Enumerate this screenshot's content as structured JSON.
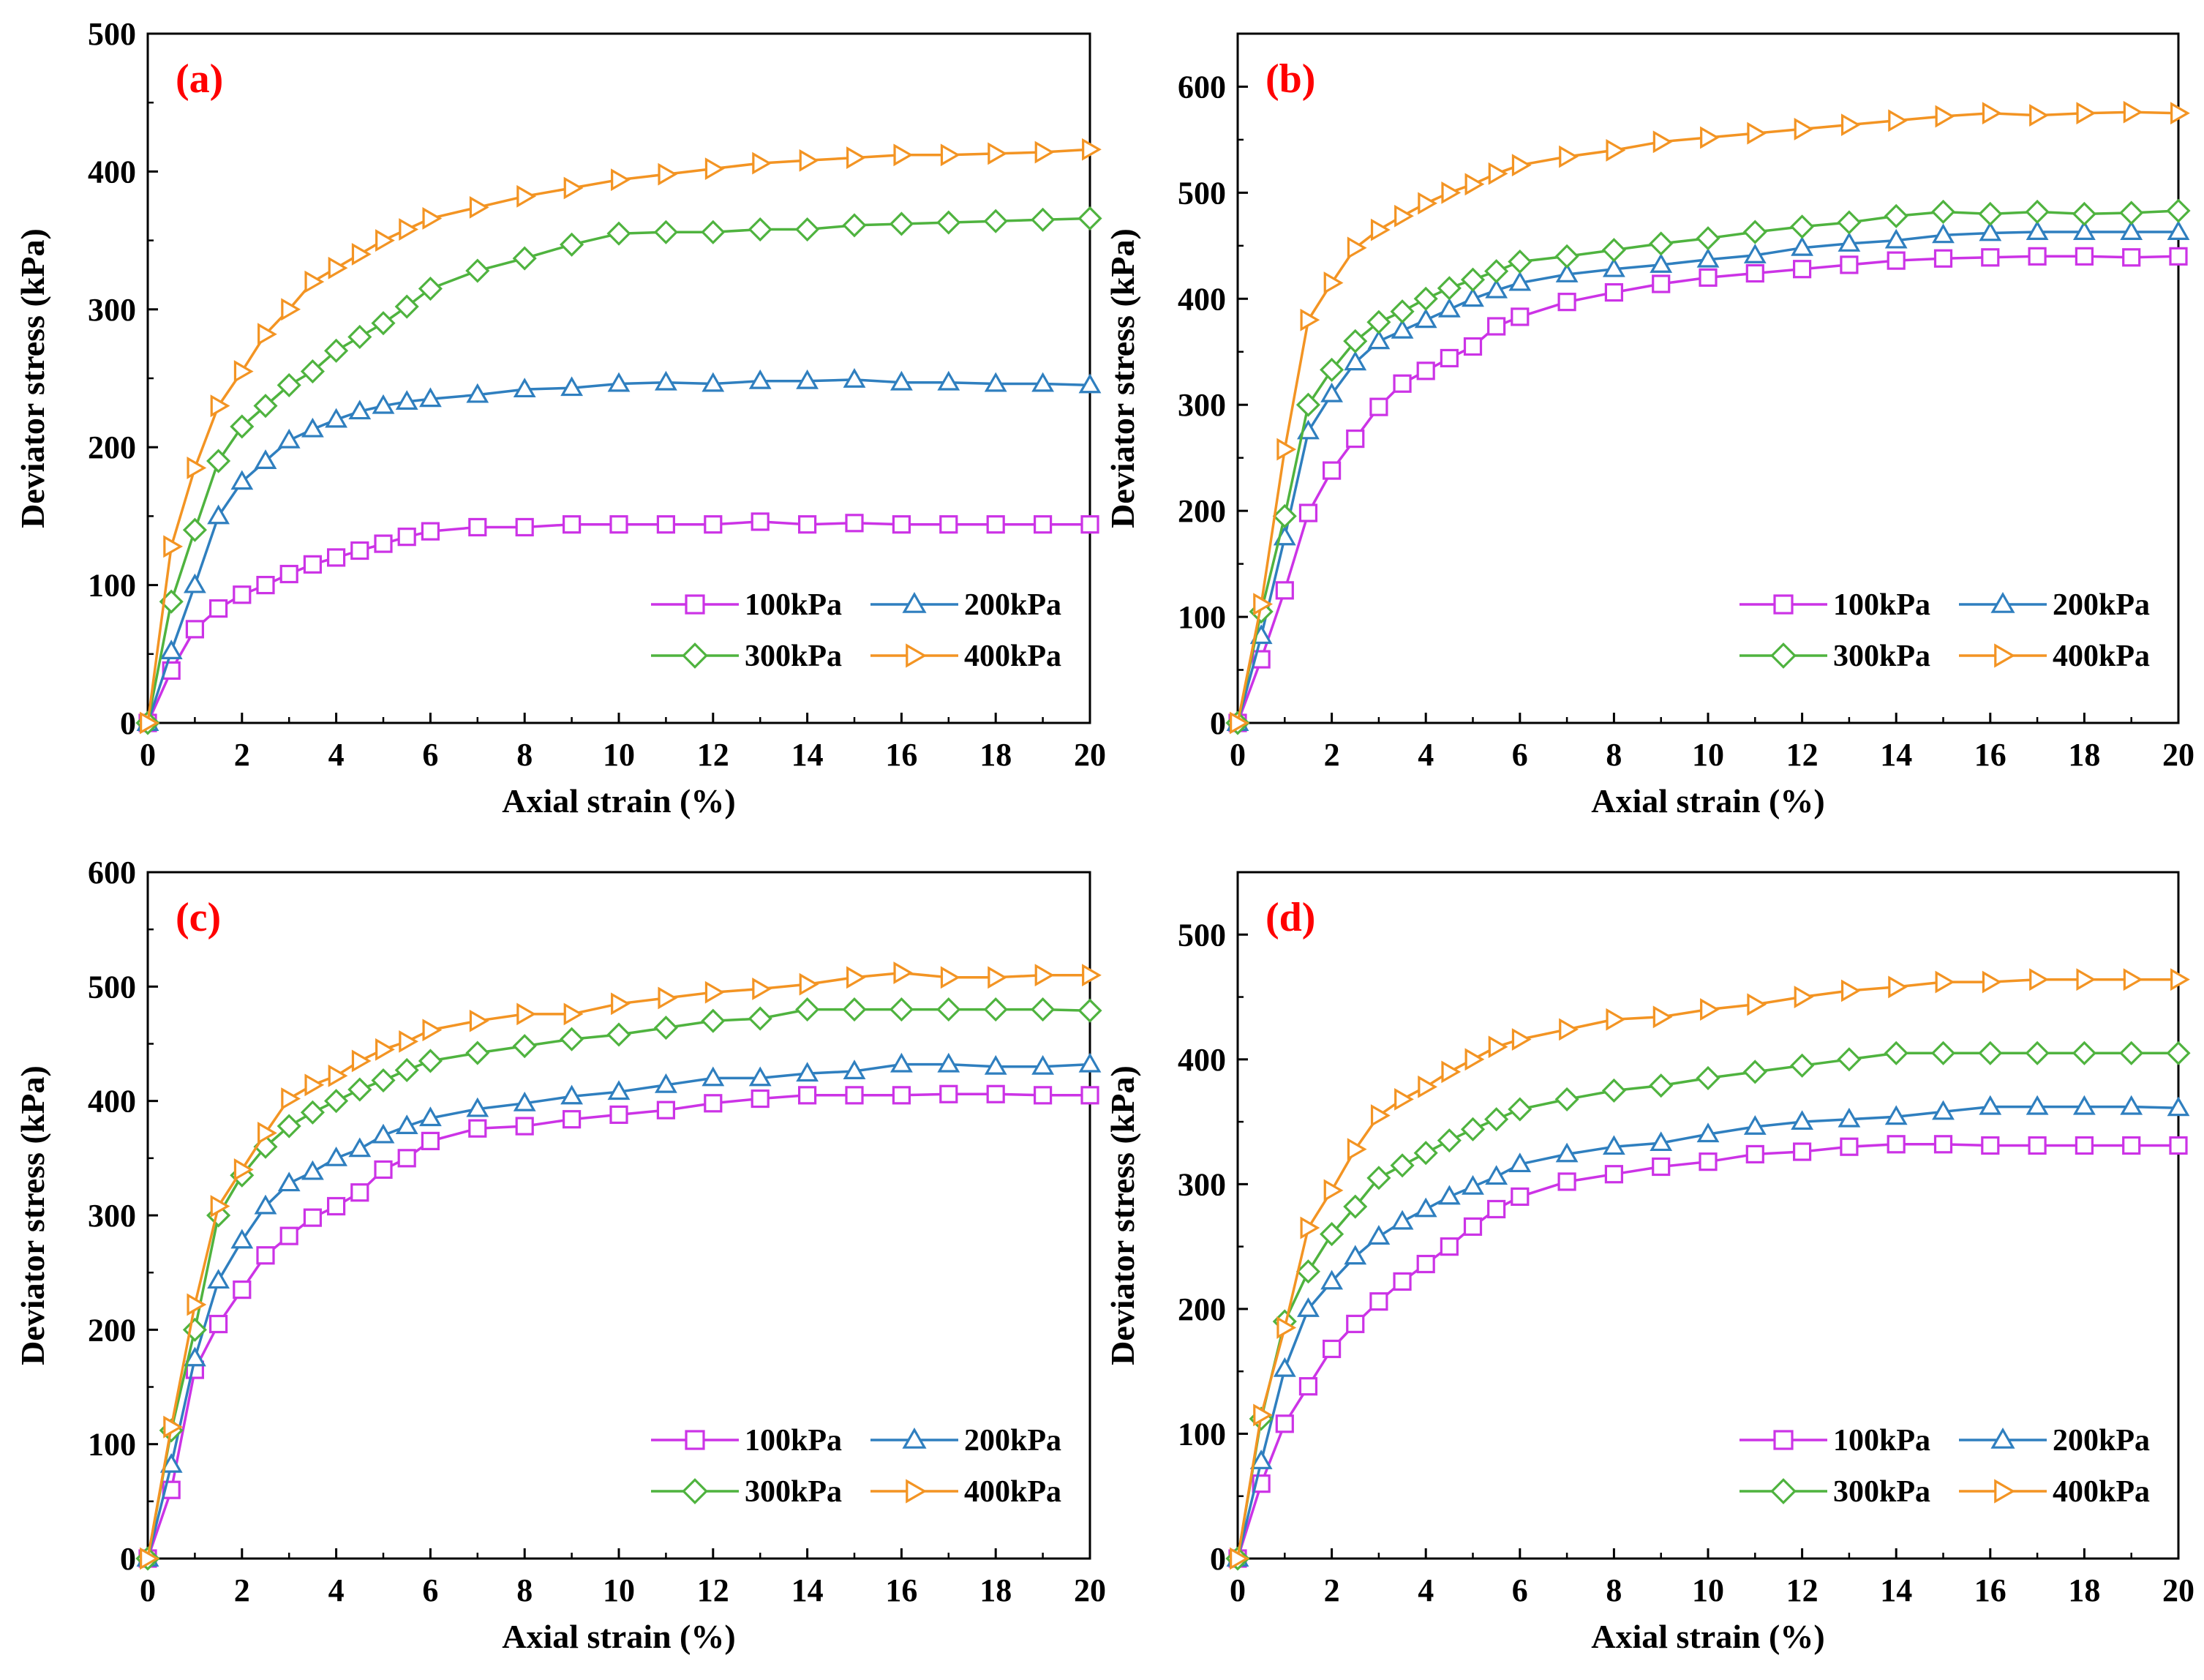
{
  "colors": {
    "100kPa": "#cc33e6",
    "200kPa": "#2f7fbf",
    "300kPa": "#4fb33f",
    "400kPa": "#f39423",
    "panel_tag": "#ff0000",
    "axis": "#000000"
  },
  "markers": {
    "100kPa": "square",
    "200kPa": "triangle-up",
    "300kPa": "diamond",
    "400kPa": "triangle-right"
  },
  "chart_data": [
    {
      "id": "a",
      "type": "line",
      "tag": "(a)",
      "xlabel": "Axial strain (%)",
      "ylabel": "Deviator stress (kPa)",
      "xlim": [
        0,
        20
      ],
      "ylim": [
        0,
        500
      ],
      "xticks": [
        0,
        2,
        4,
        6,
        8,
        10,
        12,
        14,
        16,
        18,
        20
      ],
      "yticks": [
        0,
        100,
        200,
        300,
        400,
        500
      ],
      "legend_position": "bottom-right",
      "series": [
        {
          "name": "100kPa",
          "x": [
            0,
            0.5,
            1,
            1.5,
            2,
            2.5,
            3,
            3.5,
            4,
            4.5,
            5,
            5.5,
            6,
            7,
            8,
            9,
            10,
            11,
            12,
            13,
            14,
            15,
            16,
            17,
            18,
            19,
            20
          ],
          "y": [
            0,
            38,
            68,
            83,
            93,
            100,
            108,
            115,
            120,
            125,
            130,
            135,
            139,
            142,
            142,
            144,
            144,
            144,
            144,
            146,
            144,
            145,
            144,
            144,
            144,
            144,
            144
          ]
        },
        {
          "name": "200kPa",
          "x": [
            0,
            0.5,
            1,
            1.5,
            2,
            2.5,
            3,
            3.5,
            4,
            4.5,
            5,
            5.5,
            6,
            7,
            8,
            9,
            10,
            11,
            12,
            13,
            14,
            15,
            16,
            17,
            18,
            19,
            20
          ],
          "y": [
            0,
            52,
            100,
            150,
            175,
            190,
            205,
            213,
            220,
            226,
            230,
            233,
            235,
            238,
            242,
            243,
            246,
            247,
            246,
            248,
            248,
            249,
            247,
            247,
            246,
            246,
            245
          ]
        },
        {
          "name": "300kPa",
          "x": [
            0,
            0.5,
            1,
            1.5,
            2,
            2.5,
            3,
            3.5,
            4,
            4.5,
            5,
            5.5,
            6,
            7,
            8,
            9,
            10,
            11,
            12,
            13,
            14,
            15,
            16,
            17,
            18,
            19,
            20
          ],
          "y": [
            0,
            88,
            140,
            190,
            215,
            230,
            245,
            255,
            270,
            280,
            290,
            302,
            315,
            328,
            337,
            347,
            355,
            356,
            356,
            358,
            358,
            361,
            362,
            363,
            364,
            365,
            366
          ]
        },
        {
          "name": "400kPa",
          "x": [
            0,
            0.5,
            1,
            1.5,
            2,
            2.5,
            3,
            3.5,
            4,
            4.5,
            5,
            5.5,
            6,
            7,
            8,
            9,
            10,
            11,
            12,
            13,
            14,
            15,
            16,
            17,
            18,
            19,
            20
          ],
          "y": [
            0,
            128,
            185,
            230,
            255,
            282,
            300,
            320,
            330,
            340,
            350,
            358,
            366,
            374,
            382,
            388,
            394,
            398,
            402,
            406,
            408,
            410,
            412,
            412,
            413,
            414,
            416
          ]
        }
      ]
    },
    {
      "id": "b",
      "type": "line",
      "tag": "(b)",
      "xlabel": "Axial strain (%)",
      "ylabel": "Deviator stress (kPa)",
      "xlim": [
        0,
        20
      ],
      "ylim": [
        0,
        650
      ],
      "xticks": [
        0,
        2,
        4,
        6,
        8,
        10,
        12,
        14,
        16,
        18,
        20
      ],
      "yticks": [
        0,
        100,
        200,
        300,
        400,
        500,
        600
      ],
      "legend_position": "bottom-right",
      "series": [
        {
          "name": "100kPa",
          "x": [
            0,
            0.5,
            1,
            1.5,
            2,
            2.5,
            3,
            3.5,
            4,
            4.5,
            5,
            5.5,
            6,
            7,
            8,
            9,
            10,
            11,
            12,
            13,
            14,
            15,
            16,
            17,
            18,
            19,
            20
          ],
          "y": [
            0,
            60,
            125,
            198,
            238,
            268,
            298,
            320,
            332,
            344,
            355,
            374,
            383,
            397,
            406,
            414,
            420,
            424,
            428,
            432,
            436,
            438,
            439,
            440,
            440,
            439,
            440
          ]
        },
        {
          "name": "200kPa",
          "x": [
            0,
            0.5,
            1,
            1.5,
            2,
            2.5,
            3,
            3.5,
            4,
            4.5,
            5,
            5.5,
            6,
            7,
            8,
            9,
            10,
            11,
            12,
            13,
            14,
            15,
            16,
            17,
            18,
            19,
            20
          ],
          "y": [
            0,
            82,
            175,
            275,
            310,
            340,
            360,
            370,
            380,
            390,
            400,
            408,
            415,
            423,
            428,
            432,
            437,
            441,
            448,
            452,
            455,
            460,
            462,
            463,
            463,
            463,
            463
          ]
        },
        {
          "name": "300kPa",
          "x": [
            0,
            0.5,
            1,
            1.5,
            2,
            2.5,
            3,
            3.5,
            4,
            4.5,
            5,
            5.5,
            6,
            7,
            8,
            9,
            10,
            11,
            12,
            13,
            14,
            15,
            16,
            17,
            18,
            19,
            20
          ],
          "y": [
            0,
            105,
            195,
            300,
            333,
            360,
            378,
            388,
            400,
            410,
            418,
            426,
            435,
            440,
            446,
            452,
            457,
            463,
            468,
            472,
            478,
            482,
            480,
            482,
            480,
            481,
            483
          ]
        },
        {
          "name": "400kPa",
          "x": [
            0,
            0.5,
            1,
            1.5,
            2,
            2.5,
            3,
            3.5,
            4,
            4.5,
            5,
            5.5,
            6,
            7,
            8,
            9,
            10,
            11,
            12,
            13,
            14,
            15,
            16,
            17,
            18,
            19,
            20
          ],
          "y": [
            0,
            112,
            258,
            380,
            415,
            448,
            465,
            478,
            490,
            500,
            508,
            518,
            526,
            534,
            540,
            548,
            552,
            556,
            560,
            564,
            568,
            572,
            575,
            573,
            575,
            576,
            575
          ]
        }
      ]
    },
    {
      "id": "c",
      "type": "line",
      "tag": "(c)",
      "xlabel": "Axial strain (%)",
      "ylabel": "Deviator stress (kPa)",
      "xlim": [
        0,
        20
      ],
      "ylim": [
        0,
        600
      ],
      "xticks": [
        0,
        2,
        4,
        6,
        8,
        10,
        12,
        14,
        16,
        18,
        20
      ],
      "yticks": [
        0,
        100,
        200,
        300,
        400,
        500,
        600
      ],
      "legend_position": "bottom-right",
      "series": [
        {
          "name": "100kPa",
          "x": [
            0,
            0.5,
            1,
            1.5,
            2,
            2.5,
            3,
            3.5,
            4,
            4.5,
            5,
            5.5,
            6,
            7,
            8,
            9,
            10,
            11,
            12,
            13,
            14,
            15,
            16,
            17,
            18,
            19,
            20
          ],
          "y": [
            0,
            60,
            165,
            205,
            235,
            265,
            282,
            298,
            308,
            320,
            340,
            350,
            365,
            376,
            378,
            384,
            388,
            392,
            398,
            402,
            405,
            405,
            405,
            406,
            406,
            405,
            405
          ]
        },
        {
          "name": "200kPa",
          "x": [
            0,
            0.5,
            1,
            1.5,
            2,
            2.5,
            3,
            3.5,
            4,
            4.5,
            5,
            5.5,
            6,
            7,
            8,
            9,
            10,
            11,
            12,
            13,
            14,
            15,
            16,
            17,
            18,
            19,
            20
          ],
          "y": [
            0,
            82,
            175,
            243,
            278,
            308,
            328,
            338,
            350,
            358,
            370,
            378,
            385,
            393,
            398,
            404,
            408,
            414,
            420,
            420,
            424,
            426,
            432,
            432,
            430,
            430,
            432
          ]
        },
        {
          "name": "300kPa",
          "x": [
            0,
            0.5,
            1,
            1.5,
            2,
            2.5,
            3,
            3.5,
            4,
            4.5,
            5,
            5.5,
            6,
            7,
            8,
            9,
            10,
            11,
            12,
            13,
            14,
            15,
            16,
            17,
            18,
            19,
            20
          ],
          "y": [
            0,
            112,
            200,
            300,
            335,
            360,
            378,
            390,
            400,
            410,
            418,
            427,
            435,
            442,
            448,
            454,
            458,
            464,
            470,
            472,
            480,
            480,
            480,
            480,
            480,
            480,
            479
          ]
        },
        {
          "name": "400kPa",
          "x": [
            0,
            0.5,
            1,
            1.5,
            2,
            2.5,
            3,
            3.5,
            4,
            4.5,
            5,
            5.5,
            6,
            7,
            8,
            9,
            10,
            11,
            12,
            13,
            14,
            15,
            16,
            17,
            18,
            19,
            20
          ],
          "y": [
            0,
            115,
            222,
            308,
            340,
            372,
            402,
            414,
            422,
            435,
            445,
            452,
            462,
            470,
            476,
            476,
            485,
            490,
            495,
            498,
            502,
            508,
            512,
            508,
            508,
            510,
            510
          ]
        }
      ]
    },
    {
      "id": "d",
      "type": "line",
      "tag": "(d)",
      "xlabel": "Axial strain (%)",
      "ylabel": "Deviator stress (kPa)",
      "xlim": [
        0,
        20
      ],
      "ylim": [
        0,
        550
      ],
      "xticks": [
        0,
        2,
        4,
        6,
        8,
        10,
        12,
        14,
        16,
        18,
        20
      ],
      "yticks": [
        0,
        100,
        200,
        300,
        400,
        500
      ],
      "legend_position": "bottom-right",
      "series": [
        {
          "name": "100kPa",
          "x": [
            0,
            0.5,
            1,
            1.5,
            2,
            2.5,
            3,
            3.5,
            4,
            4.5,
            5,
            5.5,
            6,
            7,
            8,
            9,
            10,
            11,
            12,
            13,
            14,
            15,
            16,
            17,
            18,
            19,
            20
          ],
          "y": [
            0,
            60,
            108,
            138,
            168,
            188,
            206,
            222,
            236,
            250,
            266,
            280,
            290,
            302,
            308,
            314,
            318,
            324,
            326,
            330,
            332,
            332,
            331,
            331,
            331,
            331,
            331
          ]
        },
        {
          "name": "200kPa",
          "x": [
            0,
            0.5,
            1,
            1.5,
            2,
            2.5,
            3,
            3.5,
            4,
            4.5,
            5,
            5.5,
            6,
            7,
            8,
            9,
            10,
            11,
            12,
            13,
            14,
            15,
            16,
            17,
            18,
            19,
            20
          ],
          "y": [
            0,
            78,
            152,
            200,
            222,
            242,
            258,
            270,
            280,
            290,
            298,
            306,
            316,
            324,
            330,
            333,
            340,
            346,
            350,
            352,
            354,
            358,
            362,
            362,
            362,
            362,
            361
          ]
        },
        {
          "name": "300kPa",
          "x": [
            0,
            0.5,
            1,
            1.5,
            2,
            2.5,
            3,
            3.5,
            4,
            4.5,
            5,
            5.5,
            6,
            7,
            8,
            9,
            10,
            11,
            12,
            13,
            14,
            15,
            16,
            17,
            18,
            19,
            20
          ],
          "y": [
            0,
            112,
            190,
            230,
            260,
            282,
            305,
            315,
            325,
            335,
            344,
            352,
            360,
            368,
            375,
            379,
            385,
            390,
            395,
            400,
            405,
            405,
            405,
            405,
            405,
            405,
            405
          ]
        },
        {
          "name": "400kPa",
          "x": [
            0,
            0.5,
            1,
            1.5,
            2,
            2.5,
            3,
            3.5,
            4,
            4.5,
            5,
            5.5,
            6,
            7,
            8,
            9,
            10,
            11,
            12,
            13,
            14,
            15,
            16,
            17,
            18,
            19,
            20
          ],
          "y": [
            0,
            115,
            185,
            265,
            295,
            328,
            355,
            368,
            378,
            390,
            400,
            410,
            416,
            424,
            432,
            434,
            440,
            444,
            450,
            455,
            458,
            462,
            462,
            464,
            464,
            464,
            464
          ]
        }
      ]
    }
  ]
}
